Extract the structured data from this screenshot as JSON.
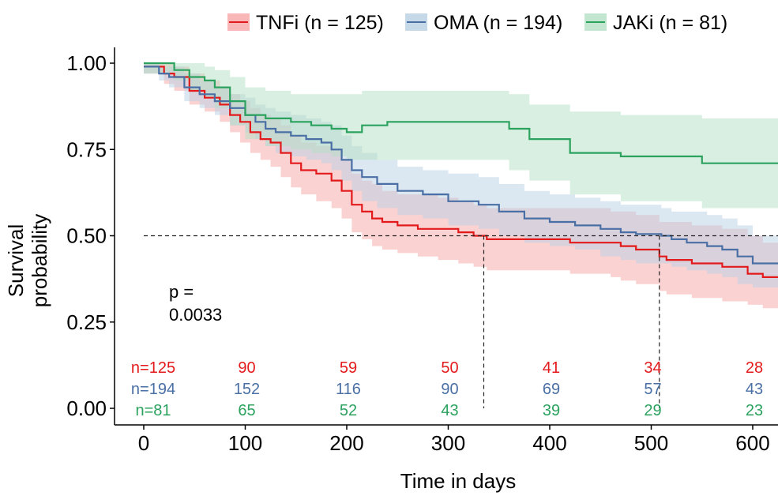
{
  "chart_data": {
    "type": "line",
    "subtype": "kaplan-meier",
    "title": "",
    "xlabel": "Time in days",
    "ylabel_lines": [
      "Survival",
      "probability"
    ],
    "xlim": [
      -28,
      628
    ],
    "ylim": [
      -0.04,
      1.09
    ],
    "x_ticks": [
      0,
      100,
      200,
      300,
      400,
      500,
      600
    ],
    "x_tick_labels": [
      "0",
      "100",
      "200",
      "300",
      "400",
      "500",
      "600"
    ],
    "y_ticks": [
      0,
      0.25,
      0.5,
      0.75,
      1
    ],
    "y_tick_labels": [
      "0.00",
      "0.25",
      "0.50",
      "0.75",
      "1.00"
    ],
    "grid": false,
    "legend": {
      "position": "top"
    },
    "pvalue_lines": [
      "p =",
      "0.0033"
    ],
    "median_reference": {
      "y": 0.5,
      "medians_x": [
        335,
        508
      ]
    },
    "series": [
      {
        "name": "TNFi (n = 125)",
        "color": "#e31a1c",
        "band_color": "#f8a5a6",
        "steps": [
          [
            0,
            0.99
          ],
          [
            20,
            0.97
          ],
          [
            30,
            0.96
          ],
          [
            45,
            0.92
          ],
          [
            60,
            0.9
          ],
          [
            75,
            0.88
          ],
          [
            85,
            0.85
          ],
          [
            95,
            0.83
          ],
          [
            105,
            0.8
          ],
          [
            115,
            0.78
          ],
          [
            125,
            0.77
          ],
          [
            135,
            0.74
          ],
          [
            145,
            0.71
          ],
          [
            155,
            0.69
          ],
          [
            170,
            0.68
          ],
          [
            185,
            0.66
          ],
          [
            195,
            0.63
          ],
          [
            205,
            0.59
          ],
          [
            215,
            0.57
          ],
          [
            225,
            0.55
          ],
          [
            235,
            0.54
          ],
          [
            250,
            0.53
          ],
          [
            270,
            0.52
          ],
          [
            290,
            0.52
          ],
          [
            310,
            0.51
          ],
          [
            325,
            0.5
          ],
          [
            338,
            0.49
          ],
          [
            420,
            0.48
          ],
          [
            460,
            0.48
          ],
          [
            470,
            0.47
          ],
          [
            485,
            0.46
          ],
          [
            508,
            0.44
          ],
          [
            515,
            0.43
          ],
          [
            540,
            0.42
          ],
          [
            570,
            0.41
          ],
          [
            595,
            0.39
          ],
          [
            610,
            0.38
          ],
          [
            628,
            0.38
          ]
        ],
        "lower": [
          [
            0,
            0.97
          ],
          [
            20,
            0.94
          ],
          [
            30,
            0.92
          ],
          [
            45,
            0.88
          ],
          [
            60,
            0.86
          ],
          [
            75,
            0.83
          ],
          [
            85,
            0.8
          ],
          [
            95,
            0.77
          ],
          [
            105,
            0.74
          ],
          [
            115,
            0.72
          ],
          [
            125,
            0.7
          ],
          [
            135,
            0.67
          ],
          [
            145,
            0.64
          ],
          [
            155,
            0.62
          ],
          [
            170,
            0.6
          ],
          [
            185,
            0.58
          ],
          [
            195,
            0.55
          ],
          [
            205,
            0.51
          ],
          [
            215,
            0.49
          ],
          [
            225,
            0.47
          ],
          [
            235,
            0.46
          ],
          [
            250,
            0.45
          ],
          [
            270,
            0.44
          ],
          [
            290,
            0.43
          ],
          [
            310,
            0.42
          ],
          [
            325,
            0.41
          ],
          [
            338,
            0.4
          ],
          [
            420,
            0.39
          ],
          [
            460,
            0.38
          ],
          [
            470,
            0.37
          ],
          [
            485,
            0.36
          ],
          [
            508,
            0.34
          ],
          [
            515,
            0.33
          ],
          [
            540,
            0.32
          ],
          [
            570,
            0.31
          ],
          [
            595,
            0.3
          ],
          [
            610,
            0.29
          ],
          [
            628,
            0.29
          ]
        ],
        "upper": [
          [
            0,
            1.0
          ],
          [
            20,
            1.0
          ],
          [
            30,
            0.99
          ],
          [
            45,
            0.97
          ],
          [
            60,
            0.95
          ],
          [
            75,
            0.93
          ],
          [
            85,
            0.91
          ],
          [
            95,
            0.89
          ],
          [
            105,
            0.87
          ],
          [
            115,
            0.85
          ],
          [
            125,
            0.84
          ],
          [
            135,
            0.82
          ],
          [
            145,
            0.79
          ],
          [
            155,
            0.77
          ],
          [
            170,
            0.76
          ],
          [
            185,
            0.75
          ],
          [
            195,
            0.72
          ],
          [
            205,
            0.68
          ],
          [
            215,
            0.66
          ],
          [
            225,
            0.65
          ],
          [
            235,
            0.63
          ],
          [
            250,
            0.62
          ],
          [
            270,
            0.62
          ],
          [
            290,
            0.61
          ],
          [
            310,
            0.6
          ],
          [
            325,
            0.59
          ],
          [
            338,
            0.58
          ],
          [
            420,
            0.58
          ],
          [
            460,
            0.57
          ],
          [
            470,
            0.57
          ],
          [
            485,
            0.56
          ],
          [
            508,
            0.54
          ],
          [
            515,
            0.54
          ],
          [
            540,
            0.53
          ],
          [
            570,
            0.52
          ],
          [
            595,
            0.5
          ],
          [
            610,
            0.48
          ],
          [
            628,
            0.48
          ]
        ]
      },
      {
        "name": "OMA (n = 194)",
        "color": "#4a6fa5",
        "band_color": "#b8cfe4",
        "steps": [
          [
            0,
            0.99
          ],
          [
            15,
            0.97
          ],
          [
            25,
            0.96
          ],
          [
            40,
            0.93
          ],
          [
            55,
            0.91
          ],
          [
            70,
            0.89
          ],
          [
            85,
            0.87
          ],
          [
            100,
            0.85
          ],
          [
            110,
            0.83
          ],
          [
            120,
            0.81
          ],
          [
            130,
            0.8
          ],
          [
            145,
            0.79
          ],
          [
            160,
            0.78
          ],
          [
            175,
            0.77
          ],
          [
            185,
            0.75
          ],
          [
            195,
            0.72
          ],
          [
            205,
            0.69
          ],
          [
            215,
            0.67
          ],
          [
            230,
            0.65
          ],
          [
            250,
            0.63
          ],
          [
            275,
            0.62
          ],
          [
            300,
            0.6
          ],
          [
            330,
            0.59
          ],
          [
            350,
            0.57
          ],
          [
            375,
            0.55
          ],
          [
            400,
            0.54
          ],
          [
            425,
            0.53
          ],
          [
            450,
            0.52
          ],
          [
            470,
            0.51
          ],
          [
            485,
            0.505
          ],
          [
            510,
            0.5
          ],
          [
            520,
            0.49
          ],
          [
            535,
            0.48
          ],
          [
            555,
            0.47
          ],
          [
            570,
            0.46
          ],
          [
            585,
            0.44
          ],
          [
            600,
            0.42
          ],
          [
            628,
            0.42
          ]
        ],
        "lower": [
          [
            0,
            0.97
          ],
          [
            15,
            0.95
          ],
          [
            25,
            0.93
          ],
          [
            40,
            0.89
          ],
          [
            55,
            0.87
          ],
          [
            70,
            0.85
          ],
          [
            85,
            0.82
          ],
          [
            100,
            0.8
          ],
          [
            110,
            0.78
          ],
          [
            120,
            0.76
          ],
          [
            130,
            0.74
          ],
          [
            145,
            0.73
          ],
          [
            160,
            0.72
          ],
          [
            175,
            0.71
          ],
          [
            185,
            0.69
          ],
          [
            195,
            0.66
          ],
          [
            205,
            0.63
          ],
          [
            215,
            0.6
          ],
          [
            230,
            0.58
          ],
          [
            250,
            0.56
          ],
          [
            275,
            0.55
          ],
          [
            300,
            0.53
          ],
          [
            330,
            0.52
          ],
          [
            350,
            0.5
          ],
          [
            375,
            0.48
          ],
          [
            400,
            0.47
          ],
          [
            425,
            0.46
          ],
          [
            450,
            0.44
          ],
          [
            470,
            0.43
          ],
          [
            485,
            0.42
          ],
          [
            510,
            0.42
          ],
          [
            520,
            0.41
          ],
          [
            535,
            0.4
          ],
          [
            555,
            0.39
          ],
          [
            570,
            0.38
          ],
          [
            585,
            0.36
          ],
          [
            600,
            0.35
          ],
          [
            628,
            0.35
          ]
        ],
        "upper": [
          [
            0,
            1.0
          ],
          [
            15,
            0.99
          ],
          [
            25,
            0.99
          ],
          [
            40,
            0.97
          ],
          [
            55,
            0.95
          ],
          [
            70,
            0.93
          ],
          [
            85,
            0.91
          ],
          [
            100,
            0.9
          ],
          [
            110,
            0.88
          ],
          [
            120,
            0.87
          ],
          [
            130,
            0.86
          ],
          [
            145,
            0.85
          ],
          [
            160,
            0.84
          ],
          [
            175,
            0.83
          ],
          [
            185,
            0.82
          ],
          [
            195,
            0.79
          ],
          [
            205,
            0.76
          ],
          [
            215,
            0.74
          ],
          [
            230,
            0.72
          ],
          [
            250,
            0.7
          ],
          [
            275,
            0.69
          ],
          [
            300,
            0.68
          ],
          [
            330,
            0.67
          ],
          [
            350,
            0.65
          ],
          [
            375,
            0.63
          ],
          [
            400,
            0.62
          ],
          [
            425,
            0.61
          ],
          [
            450,
            0.6
          ],
          [
            470,
            0.59
          ],
          [
            485,
            0.59
          ],
          [
            510,
            0.58
          ],
          [
            520,
            0.57
          ],
          [
            535,
            0.57
          ],
          [
            555,
            0.56
          ],
          [
            570,
            0.55
          ],
          [
            585,
            0.53
          ],
          [
            600,
            0.5
          ],
          [
            628,
            0.5
          ]
        ]
      },
      {
        "name": "JAKi (n = 81)",
        "color": "#2ca25f",
        "band_color": "#b3e0c4",
        "steps": [
          [
            0,
            1.0
          ],
          [
            30,
            0.98
          ],
          [
            45,
            0.96
          ],
          [
            60,
            0.95
          ],
          [
            70,
            0.93
          ],
          [
            85,
            0.89
          ],
          [
            100,
            0.85
          ],
          [
            120,
            0.84
          ],
          [
            145,
            0.83
          ],
          [
            165,
            0.82
          ],
          [
            185,
            0.81
          ],
          [
            200,
            0.8
          ],
          [
            215,
            0.82
          ],
          [
            240,
            0.83
          ],
          [
            360,
            0.81
          ],
          [
            380,
            0.78
          ],
          [
            420,
            0.74
          ],
          [
            470,
            0.73
          ],
          [
            550,
            0.71
          ],
          [
            628,
            0.71
          ]
        ],
        "lower": [
          [
            0,
            0.97
          ],
          [
            30,
            0.95
          ],
          [
            45,
            0.92
          ],
          [
            60,
            0.9
          ],
          [
            70,
            0.87
          ],
          [
            85,
            0.82
          ],
          [
            100,
            0.78
          ],
          [
            120,
            0.76
          ],
          [
            145,
            0.75
          ],
          [
            165,
            0.74
          ],
          [
            185,
            0.73
          ],
          [
            200,
            0.72
          ],
          [
            215,
            0.72
          ],
          [
            240,
            0.72
          ],
          [
            360,
            0.69
          ],
          [
            380,
            0.66
          ],
          [
            420,
            0.62
          ],
          [
            470,
            0.6
          ],
          [
            550,
            0.58
          ],
          [
            628,
            0.57
          ]
        ],
        "upper": [
          [
            0,
            1.0
          ],
          [
            30,
            1.0
          ],
          [
            45,
            1.0
          ],
          [
            60,
            0.99
          ],
          [
            70,
            0.98
          ],
          [
            85,
            0.96
          ],
          [
            100,
            0.93
          ],
          [
            120,
            0.92
          ],
          [
            145,
            0.91
          ],
          [
            165,
            0.91
          ],
          [
            185,
            0.91
          ],
          [
            200,
            0.91
          ],
          [
            215,
            0.92
          ],
          [
            240,
            0.92
          ],
          [
            360,
            0.91
          ],
          [
            380,
            0.88
          ],
          [
            420,
            0.86
          ],
          [
            470,
            0.85
          ],
          [
            550,
            0.84
          ],
          [
            628,
            0.84
          ]
        ]
      }
    ],
    "risk_table": {
      "times": [
        0,
        100,
        200,
        300,
        400,
        500,
        600
      ],
      "rows": [
        {
          "series": "TNFi",
          "color": "#e31a1c",
          "labels": [
            "n=125",
            "90",
            "59",
            "50",
            "41",
            "34",
            "28"
          ]
        },
        {
          "series": "OMA",
          "color": "#4a6fa5",
          "labels": [
            "n=194",
            "152",
            "116",
            "90",
            "69",
            "57",
            "43"
          ]
        },
        {
          "series": "JAKi",
          "color": "#2ca25f",
          "labels": [
            "n=81",
            "65",
            "52",
            "43",
            "39",
            "29",
            "23"
          ]
        }
      ]
    }
  }
}
